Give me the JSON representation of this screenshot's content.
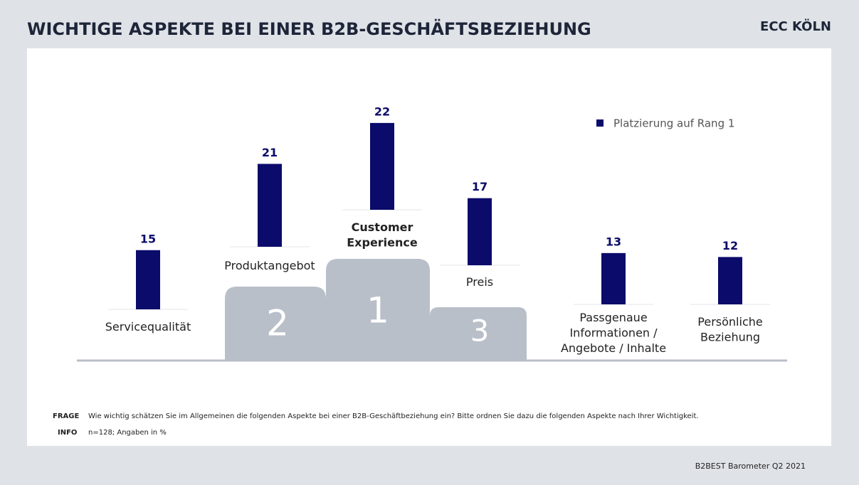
{
  "chart_data": {
    "type": "bar",
    "title": "WICHTIGE ASPEKTE BEI EINER B2B-GESCHÄFTSBEZIEHUNG",
    "brand": "ECC KÖLN",
    "categories": [
      "Servicequalität",
      "Produktangebot",
      "Customer\nExperience",
      "Preis",
      "Passgenaue\nInformationen /\nAngebote / Inhalte",
      "Persönliche\nBeziehung"
    ],
    "series": [
      {
        "name": "Platzierung auf Rang 1",
        "color": "#0b0b6b",
        "values": [
          15,
          21,
          22,
          17,
          13,
          12
        ]
      }
    ],
    "podium": [
      "2",
      "1",
      "3"
    ]
  },
  "footer": {
    "question_label": "FRAGE",
    "question": "Wie wichtig schätzen Sie im Allgemeinen die folgenden Aspekte bei einer B2B-Geschäftbeziehung ein? Bitte ordnen Sie dazu die folgenden Aspekte nach Ihrer Wichtigkeit.",
    "info_label": "INFO",
    "info": "n=128; Angaben in %",
    "source": "B2BEST Barometer Q2 2021"
  }
}
